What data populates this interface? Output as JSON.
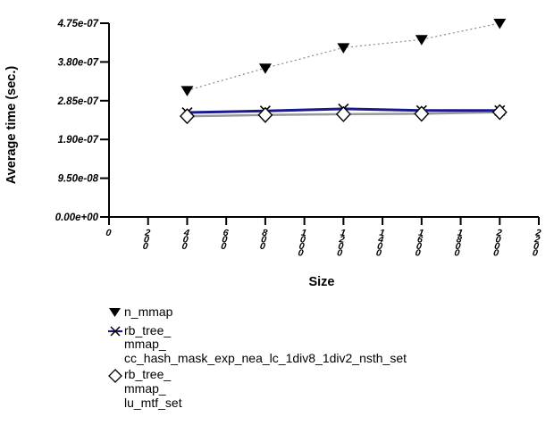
{
  "chart_data": {
    "type": "line",
    "title": "",
    "xlabel": "Size",
    "ylabel": "Average time (sec.)",
    "xlim": [
      0,
      2200
    ],
    "ylim": [
      0,
      4.75e-07
    ],
    "grid": false,
    "legend_position": "below-left",
    "xticks": [
      0,
      200,
      400,
      600,
      800,
      1000,
      1200,
      1400,
      1600,
      1800,
      2000,
      2200
    ],
    "xtick_labels": [
      "0",
      "200",
      "400",
      "600",
      "800",
      "1000",
      "1200",
      "1400",
      "1600",
      "1800",
      "2000",
      "2200"
    ],
    "yticks": [
      0,
      9.5e-08,
      1.9e-07,
      2.85e-07,
      3.8e-07,
      4.75e-07
    ],
    "ytick_labels": [
      "0.00e+00",
      "9.50e-08",
      "1.90e-07",
      "2.85e-07",
      "3.80e-07",
      "4.75e-07"
    ],
    "x": [
      400,
      800,
      1200,
      1600,
      2000
    ],
    "series": [
      {
        "name": "n_mmap",
        "marker": "triangle-down-filled",
        "marker_color": "#000000",
        "line_color": "#888888",
        "line_style": "dotted",
        "line_width": 1.2,
        "values": [
          3.1e-07,
          3.65e-07,
          4.15e-07,
          4.35e-07,
          4.75e-07
        ]
      },
      {
        "name": "rb_tree_mmap_cc_hash_mask_exp_nea_lc_1div8_1div2_nsth_set",
        "marker": "x",
        "marker_color": "#000000",
        "line_color": "#1a1a8c",
        "line_style": "solid",
        "line_width": 3,
        "values": [
          2.56e-07,
          2.6e-07,
          2.65e-07,
          2.61e-07,
          2.61e-07
        ]
      },
      {
        "name": "rb_tree_mmap_lu_mtf_set",
        "marker": "diamond-open",
        "marker_color": "#000000",
        "line_color": "#999999",
        "line_style": "solid",
        "line_width": 2.5,
        "values": [
          2.47e-07,
          2.5e-07,
          2.52e-07,
          2.53e-07,
          2.57e-07
        ]
      }
    ]
  },
  "legend": {
    "entries": [
      {
        "marker": "triangle-down-filled",
        "lines": [
          "n_mmap"
        ]
      },
      {
        "marker": "x-on-blue-line",
        "lines": [
          "rb_tree_",
          "mmap_",
          "cc_hash_mask_exp_nea_lc_1div8_1div2_nsth_set"
        ]
      },
      {
        "marker": "diamond-open",
        "lines": [
          "rb_tree_",
          "mmap_",
          "lu_mtf_set"
        ]
      }
    ]
  },
  "colors": {
    "axis": "#000000",
    "navy": "#1a1a8c",
    "gray_line": "#999999",
    "dotted_gray": "#888888",
    "background": "#ffffff"
  }
}
